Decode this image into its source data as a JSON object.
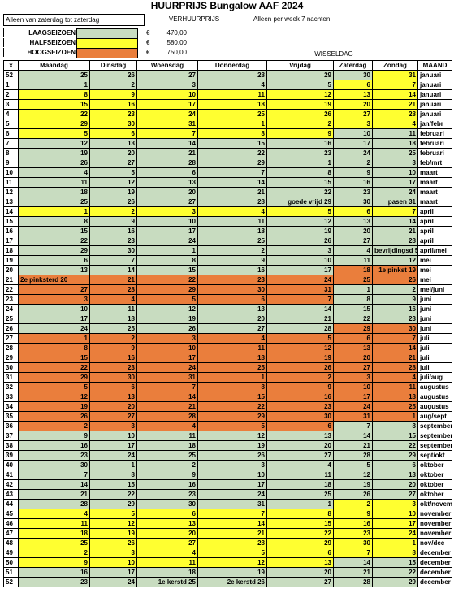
{
  "title": "HUURPRIJS  Bungalow AAF 2024",
  "info": {
    "alleen": "Alleen van zaterdag tot zaterdag",
    "verhuur": "VERHUURPRIJS",
    "perweek": "Alleen per week 7 nachten",
    "wissel": "WISSELDAG",
    "seasons": [
      {
        "name": "LAAGSEIZOEN",
        "cur": "€",
        "price": "470,00",
        "color": "#c8dcc0"
      },
      {
        "name": "HALFSEIZOEN",
        "cur": "€",
        "price": "580,00",
        "color": "#ffff30"
      },
      {
        "name": "HOOGSEIZOEN",
        "cur": "€",
        "price": "750,00",
        "color": "#ea7e3c"
      }
    ]
  },
  "headers": [
    "x",
    "Maandag",
    "Dinsdag",
    "Woensdag",
    "Donderdag",
    "Vrijdag",
    "Zaterdag",
    "Zondag",
    "MAAND"
  ],
  "rows": [
    {
      "w": "52",
      "d": [
        "25",
        "26",
        "27",
        "28",
        "29",
        "30",
        "31"
      ],
      "m": "januari",
      "c": [
        "g",
        "g",
        "g",
        "g",
        "g",
        "g",
        "y"
      ],
      "mc": "w"
    },
    {
      "w": "1",
      "d": [
        "1",
        "2",
        "3",
        "4",
        "5",
        "6",
        "7"
      ],
      "m": "januari",
      "c": [
        "g",
        "g",
        "g",
        "g",
        "g",
        "y",
        "y"
      ],
      "mc": "w"
    },
    {
      "w": "2",
      "d": [
        "8",
        "9",
        "10",
        "11",
        "12",
        "13",
        "14"
      ],
      "m": "januari",
      "c": [
        "y",
        "y",
        "y",
        "y",
        "y",
        "y",
        "y"
      ],
      "mc": "w"
    },
    {
      "w": "3",
      "d": [
        "15",
        "16",
        "17",
        "18",
        "19",
        "20",
        "21"
      ],
      "m": "januari",
      "c": [
        "y",
        "y",
        "y",
        "y",
        "y",
        "y",
        "y"
      ],
      "mc": "w"
    },
    {
      "w": "4",
      "d": [
        "22",
        "23",
        "24",
        "25",
        "26",
        "27",
        "28"
      ],
      "m": "januari",
      "c": [
        "y",
        "y",
        "y",
        "y",
        "y",
        "y",
        "y"
      ],
      "mc": "w"
    },
    {
      "w": "5",
      "d": [
        "29",
        "30",
        "31",
        "1",
        "2",
        "3",
        "4"
      ],
      "m": "jan/febr",
      "c": [
        "y",
        "y",
        "y",
        "y",
        "y",
        "y",
        "y"
      ],
      "mc": "w"
    },
    {
      "w": "6",
      "d": [
        "5",
        "6",
        "7",
        "8",
        "9",
        "10",
        "11"
      ],
      "m": "februari",
      "c": [
        "y",
        "y",
        "y",
        "y",
        "y",
        "g",
        "g"
      ],
      "mc": "w"
    },
    {
      "w": "7",
      "d": [
        "12",
        "13",
        "14",
        "15",
        "16",
        "17",
        "18"
      ],
      "m": "februari",
      "c": [
        "g",
        "g",
        "g",
        "g",
        "g",
        "g",
        "g"
      ],
      "mc": "w"
    },
    {
      "w": "8",
      "d": [
        "19",
        "20",
        "21",
        "22",
        "23",
        "24",
        "25"
      ],
      "m": "februari",
      "c": [
        "g",
        "g",
        "g",
        "g",
        "g",
        "g",
        "g"
      ],
      "mc": "w"
    },
    {
      "w": "9",
      "d": [
        "26",
        "27",
        "28",
        "29",
        "1",
        "2",
        "3"
      ],
      "m": "feb/mrt",
      "c": [
        "g",
        "g",
        "g",
        "g",
        "g",
        "g",
        "g"
      ],
      "mc": "w"
    },
    {
      "w": "10",
      "d": [
        "4",
        "5",
        "6",
        "7",
        "8",
        "9",
        "10"
      ],
      "m": "maart",
      "c": [
        "g",
        "g",
        "g",
        "g",
        "g",
        "g",
        "g"
      ],
      "mc": "w"
    },
    {
      "w": "11",
      "d": [
        "11",
        "12",
        "13",
        "14",
        "15",
        "16",
        "17"
      ],
      "m": "maart",
      "c": [
        "g",
        "g",
        "g",
        "g",
        "g",
        "g",
        "g"
      ],
      "mc": "w"
    },
    {
      "w": "12",
      "d": [
        "18",
        "19",
        "20",
        "21",
        "22",
        "23",
        "24"
      ],
      "m": "maart",
      "c": [
        "g",
        "g",
        "g",
        "g",
        "g",
        "g",
        "g"
      ],
      "mc": "w"
    },
    {
      "w": "13",
      "d": [
        "25",
        "26",
        "27",
        "28",
        "goede vrijd 29",
        "30",
        "pasen 31"
      ],
      "m": "maart",
      "c": [
        "g",
        "g",
        "g",
        "g",
        "g",
        "g",
        "g"
      ],
      "mc": "w"
    },
    {
      "w": "14",
      "d": [
        "1",
        "2",
        "3",
        "4",
        "5",
        "6",
        "7"
      ],
      "m": "april",
      "c": [
        "y",
        "y",
        "y",
        "y",
        "y",
        "y",
        "y"
      ],
      "mc": "w"
    },
    {
      "w": "15",
      "d": [
        "8",
        "9",
        "10",
        "11",
        "12",
        "13",
        "14"
      ],
      "m": "april",
      "c": [
        "g",
        "g",
        "g",
        "g",
        "g",
        "g",
        "g"
      ],
      "mc": "w"
    },
    {
      "w": "16",
      "d": [
        "15",
        "16",
        "17",
        "18",
        "19",
        "20",
        "21"
      ],
      "m": "april",
      "c": [
        "g",
        "g",
        "g",
        "g",
        "g",
        "g",
        "g"
      ],
      "mc": "w"
    },
    {
      "w": "17",
      "d": [
        "22",
        "23",
        "24",
        "25",
        "26",
        "27",
        "28"
      ],
      "m": "april",
      "c": [
        "g",
        "g",
        "g",
        "g",
        "g",
        "g",
        "g"
      ],
      "mc": "w"
    },
    {
      "w": "18",
      "d": [
        "29",
        "30",
        "1",
        "2",
        "3",
        "4",
        "bevrijdingsd 5"
      ],
      "m": "april/mei",
      "c": [
        "g",
        "g",
        "g",
        "g",
        "g",
        "g",
        "g"
      ],
      "mc": "w"
    },
    {
      "w": "19",
      "d": [
        "6",
        "7",
        "8",
        "9",
        "10",
        "11",
        "12"
      ],
      "m": "mei",
      "c": [
        "g",
        "g",
        "g",
        "g",
        "g",
        "g",
        "g"
      ],
      "mc": "w"
    },
    {
      "w": "20",
      "d": [
        "13",
        "14",
        "15",
        "16",
        "17",
        "18",
        "1e pinkst 19"
      ],
      "m": "mei",
      "c": [
        "g",
        "g",
        "g",
        "g",
        "g",
        "o",
        "o"
      ],
      "mc": "w"
    },
    {
      "w": "21",
      "d": [
        "2e pinksterd 20",
        "21",
        "22",
        "23",
        "24",
        "25",
        "26"
      ],
      "m": "mei",
      "c": [
        "o",
        "o",
        "o",
        "o",
        "o",
        "o",
        "o"
      ],
      "mc": "w"
    },
    {
      "w": "22",
      "d": [
        "27",
        "28",
        "29",
        "30",
        "31",
        "1",
        "2"
      ],
      "m": "mei/juni",
      "c": [
        "o",
        "o",
        "o",
        "o",
        "o",
        "g",
        "g"
      ],
      "mc": "w"
    },
    {
      "w": "23",
      "d": [
        "3",
        "4",
        "5",
        "6",
        "7",
        "8",
        "9"
      ],
      "m": "juni",
      "c": [
        "o",
        "o",
        "o",
        "o",
        "o",
        "g",
        "g"
      ],
      "mc": "w"
    },
    {
      "w": "24",
      "d": [
        "10",
        "11",
        "12",
        "13",
        "14",
        "15",
        "16"
      ],
      "m": "juni",
      "c": [
        "g",
        "g",
        "g",
        "g",
        "g",
        "g",
        "g"
      ],
      "mc": "w"
    },
    {
      "w": "25",
      "d": [
        "17",
        "18",
        "19",
        "20",
        "21",
        "22",
        "23"
      ],
      "m": "juni",
      "c": [
        "g",
        "g",
        "g",
        "g",
        "g",
        "g",
        "g"
      ],
      "mc": "w"
    },
    {
      "w": "26",
      "d": [
        "24",
        "25",
        "26",
        "27",
        "28",
        "29",
        "30"
      ],
      "m": "juni",
      "c": [
        "g",
        "g",
        "g",
        "g",
        "g",
        "o",
        "o"
      ],
      "mc": "w"
    },
    {
      "w": "27",
      "d": [
        "1",
        "2",
        "3",
        "4",
        "5",
        "6",
        "7"
      ],
      "m": "juli",
      "c": [
        "o",
        "o",
        "o",
        "o",
        "o",
        "o",
        "o"
      ],
      "mc": "w"
    },
    {
      "w": "28",
      "d": [
        "8",
        "9",
        "10",
        "11",
        "12",
        "13",
        "14"
      ],
      "m": "juli",
      "c": [
        "o",
        "o",
        "o",
        "o",
        "o",
        "o",
        "o"
      ],
      "mc": "w"
    },
    {
      "w": "29",
      "d": [
        "15",
        "16",
        "17",
        "18",
        "19",
        "20",
        "21"
      ],
      "m": "juli",
      "c": [
        "o",
        "o",
        "o",
        "o",
        "o",
        "o",
        "o"
      ],
      "mc": "w"
    },
    {
      "w": "30",
      "d": [
        "22",
        "23",
        "24",
        "25",
        "26",
        "27",
        "28"
      ],
      "m": "juli",
      "c": [
        "o",
        "o",
        "o",
        "o",
        "o",
        "o",
        "o"
      ],
      "mc": "w"
    },
    {
      "w": "31",
      "d": [
        "29",
        "30",
        "31",
        "1",
        "2",
        "3",
        "4"
      ],
      "m": "juli/aug",
      "c": [
        "o",
        "o",
        "o",
        "o",
        "o",
        "o",
        "o"
      ],
      "mc": "w"
    },
    {
      "w": "32",
      "d": [
        "5",
        "6",
        "7",
        "8",
        "9",
        "10",
        "11"
      ],
      "m": "augustus",
      "c": [
        "o",
        "o",
        "o",
        "o",
        "o",
        "o",
        "o"
      ],
      "mc": "w"
    },
    {
      "w": "33",
      "d": [
        "12",
        "13",
        "14",
        "15",
        "16",
        "17",
        "18"
      ],
      "m": "augustus",
      "c": [
        "o",
        "o",
        "o",
        "o",
        "o",
        "o",
        "o"
      ],
      "mc": "w"
    },
    {
      "w": "34",
      "d": [
        "19",
        "20",
        "21",
        "22",
        "23",
        "24",
        "25"
      ],
      "m": "augustus",
      "c": [
        "o",
        "o",
        "o",
        "o",
        "o",
        "o",
        "o"
      ],
      "mc": "w"
    },
    {
      "w": "35",
      "d": [
        "26",
        "27",
        "28",
        "29",
        "30",
        "31",
        "1"
      ],
      "m": "aug/sept",
      "c": [
        "o",
        "o",
        "o",
        "o",
        "o",
        "o",
        "o"
      ],
      "mc": "w"
    },
    {
      "w": "36",
      "d": [
        "2",
        "3",
        "4",
        "5",
        "6",
        "7",
        "8"
      ],
      "m": "september",
      "c": [
        "o",
        "o",
        "o",
        "o",
        "o",
        "g",
        "g"
      ],
      "mc": "w"
    },
    {
      "w": "37",
      "d": [
        "9",
        "10",
        "11",
        "12",
        "13",
        "14",
        "15"
      ],
      "m": "september",
      "c": [
        "g",
        "g",
        "g",
        "g",
        "g",
        "g",
        "g"
      ],
      "mc": "w"
    },
    {
      "w": "38",
      "d": [
        "16",
        "17",
        "18",
        "19",
        "20",
        "21",
        "22"
      ],
      "m": "september",
      "c": [
        "g",
        "g",
        "g",
        "g",
        "g",
        "g",
        "g"
      ],
      "mc": "w"
    },
    {
      "w": "39",
      "d": [
        "23",
        "24",
        "25",
        "26",
        "27",
        "28",
        "29"
      ],
      "m": "sept/okt",
      "c": [
        "g",
        "g",
        "g",
        "g",
        "g",
        "g",
        "g"
      ],
      "mc": "w"
    },
    {
      "w": "40",
      "d": [
        "30",
        "1",
        "2",
        "3",
        "4",
        "5",
        "6"
      ],
      "m": "oktober",
      "c": [
        "g",
        "g",
        "g",
        "g",
        "g",
        "g",
        "g"
      ],
      "mc": "w"
    },
    {
      "w": "41",
      "d": [
        "7",
        "8",
        "9",
        "10",
        "11",
        "12",
        "13"
      ],
      "m": "oktober",
      "c": [
        "g",
        "g",
        "g",
        "g",
        "g",
        "g",
        "g"
      ],
      "mc": "w"
    },
    {
      "w": "42",
      "d": [
        "14",
        "15",
        "16",
        "17",
        "18",
        "19",
        "20"
      ],
      "m": "oktober",
      "c": [
        "g",
        "g",
        "g",
        "g",
        "g",
        "g",
        "g"
      ],
      "mc": "w"
    },
    {
      "w": "43",
      "d": [
        "21",
        "22",
        "23",
        "24",
        "25",
        "26",
        "27"
      ],
      "m": "oktober",
      "c": [
        "g",
        "g",
        "g",
        "g",
        "g",
        "g",
        "g"
      ],
      "mc": "w"
    },
    {
      "w": "44",
      "d": [
        "28",
        "29",
        "30",
        "31",
        "1",
        "2",
        "3"
      ],
      "m": "okt/novem",
      "c": [
        "g",
        "g",
        "g",
        "g",
        "g",
        "y",
        "y"
      ],
      "mc": "w"
    },
    {
      "w": "45",
      "d": [
        "4",
        "5",
        "6",
        "7",
        "8",
        "9",
        "10"
      ],
      "m": "november",
      "c": [
        "y",
        "y",
        "y",
        "y",
        "y",
        "y",
        "y"
      ],
      "mc": "w"
    },
    {
      "w": "46",
      "d": [
        "11",
        "12",
        "13",
        "14",
        "15",
        "16",
        "17"
      ],
      "m": "november",
      "c": [
        "y",
        "y",
        "y",
        "y",
        "y",
        "y",
        "y"
      ],
      "mc": "w"
    },
    {
      "w": "47",
      "d": [
        "18",
        "19",
        "20",
        "21",
        "22",
        "23",
        "24"
      ],
      "m": "november",
      "c": [
        "y",
        "y",
        "y",
        "y",
        "y",
        "y",
        "y"
      ],
      "mc": "w"
    },
    {
      "w": "48",
      "d": [
        "25",
        "26",
        "27",
        "28",
        "29",
        "30",
        "1"
      ],
      "m": "nov/dec",
      "c": [
        "y",
        "y",
        "y",
        "y",
        "y",
        "y",
        "y"
      ],
      "mc": "w"
    },
    {
      "w": "49",
      "d": [
        "2",
        "3",
        "4",
        "5",
        "6",
        "7",
        "8"
      ],
      "m": "december",
      "c": [
        "y",
        "y",
        "y",
        "y",
        "y",
        "y",
        "y"
      ],
      "mc": "w"
    },
    {
      "w": "50",
      "d": [
        "9",
        "10",
        "11",
        "12",
        "13",
        "14",
        "15"
      ],
      "m": "december",
      "c": [
        "y",
        "y",
        "y",
        "y",
        "y",
        "g",
        "g"
      ],
      "mc": "w"
    },
    {
      "w": "51",
      "d": [
        "16",
        "17",
        "18",
        "19",
        "20",
        "21",
        "22"
      ],
      "m": "december",
      "c": [
        "g",
        "g",
        "g",
        "g",
        "g",
        "g",
        "g"
      ],
      "mc": "w"
    },
    {
      "w": "52",
      "d": [
        "23",
        "24",
        "1e kerstd 25",
        "2e kerstd 26",
        "27",
        "28",
        "29"
      ],
      "m": "december",
      "c": [
        "g",
        "g",
        "g",
        "g",
        "g",
        "g",
        "g"
      ],
      "mc": "w"
    }
  ]
}
